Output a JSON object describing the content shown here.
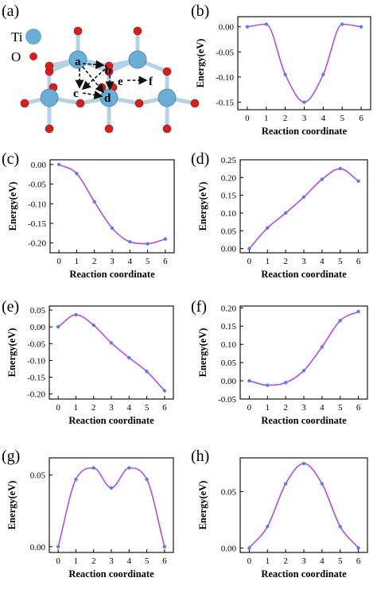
{
  "panel_letters": [
    "(a)",
    "(b)",
    "(c)",
    "(d)",
    "(e)",
    "(f)",
    "(g)",
    "(h)"
  ],
  "structure": {
    "legend": [
      {
        "symbol": "Ti",
        "color": "#6aaed6"
      },
      {
        "symbol": "O",
        "color": "#d62020"
      }
    ],
    "site_labels": [
      "a",
      "b",
      "c",
      "d",
      "e",
      "f"
    ],
    "colors": {
      "ti": "#6aaed6",
      "o": "#d62020",
      "bond": "#b4d2e3",
      "arrow": "#111111"
    }
  },
  "style": {
    "line_color": "#b04fd6",
    "marker_color": "#5b7fe0"
  },
  "chart_data": [
    {
      "panel": "(b)",
      "type": "line",
      "xlabel": "Reaction coordinate",
      "ylabel": "Energy(eV)",
      "x": [
        0,
        1,
        2,
        3,
        4,
        5,
        6
      ],
      "values": [
        0.0,
        0.005,
        -0.095,
        -0.15,
        -0.095,
        0.005,
        0.0
      ],
      "xlim": [
        -0.5,
        6.5
      ],
      "ylim": [
        -0.165,
        0.02
      ],
      "xticks": [
        "0",
        "1",
        "2",
        "3",
        "4",
        "5",
        "6"
      ],
      "yticks": [
        "0.00",
        "-0.05",
        "-0.10",
        "-0.15"
      ]
    },
    {
      "panel": "(c)",
      "type": "line",
      "xlabel": "Reaction coordinate",
      "ylabel": "Energy(eV)",
      "x": [
        0,
        1,
        2,
        3,
        4,
        5,
        6
      ],
      "values": [
        0.0,
        -0.023,
        -0.095,
        -0.162,
        -0.197,
        -0.202,
        -0.19
      ],
      "xlim": [
        -0.5,
        6.5
      ],
      "ylim": [
        -0.225,
        0.012
      ],
      "xticks": [
        "0",
        "1",
        "2",
        "3",
        "4",
        "5",
        "6"
      ],
      "yticks": [
        "0.00",
        "-0.05",
        "-0.10",
        "-0.15",
        "-0.20"
      ]
    },
    {
      "panel": "(d)",
      "type": "line",
      "xlabel": "Reaction coordinate",
      "ylabel": "Energy(eV)",
      "x": [
        0,
        1,
        2,
        3,
        4,
        5,
        6
      ],
      "values": [
        0.0,
        0.058,
        0.1,
        0.145,
        0.195,
        0.225,
        0.19
      ],
      "xlim": [
        -0.5,
        6.5
      ],
      "ylim": [
        -0.012,
        0.25
      ],
      "xticks": [
        "0",
        "1",
        "2",
        "3",
        "4",
        "5",
        "6"
      ],
      "yticks": [
        "0.00",
        "0.05",
        "0.10",
        "0.15",
        "0.20",
        "0.25"
      ]
    },
    {
      "panel": "(e)",
      "type": "line",
      "xlabel": "Reaction coordinate",
      "ylabel": "Energy(eV)",
      "x": [
        0,
        1,
        2,
        3,
        4,
        5,
        6
      ],
      "values": [
        0.0,
        0.036,
        0.005,
        -0.048,
        -0.092,
        -0.133,
        -0.19
      ],
      "xlim": [
        -0.5,
        6.5
      ],
      "ylim": [
        -0.215,
        0.062
      ],
      "xticks": [
        "0",
        "1",
        "2",
        "3",
        "4",
        "5",
        "6"
      ],
      "yticks": [
        "0.05",
        "0.00",
        "-0.05",
        "-0.10",
        "-0.15",
        "-0.20"
      ]
    },
    {
      "panel": "(f)",
      "type": "line",
      "xlabel": "Reaction coordinate",
      "ylabel": "Energy(eV)",
      "x": [
        0,
        1,
        2,
        3,
        4,
        5,
        6
      ],
      "values": [
        0.0,
        -0.012,
        -0.005,
        0.028,
        0.093,
        0.165,
        0.19
      ],
      "xlim": [
        -0.5,
        6.5
      ],
      "ylim": [
        -0.05,
        0.205
      ],
      "xticks": [
        "0",
        "1",
        "2",
        "3",
        "4",
        "5",
        "6"
      ],
      "yticks": [
        "0.20",
        "0.15",
        "0.10",
        "0.05",
        "0.00",
        "-0.05"
      ]
    },
    {
      "panel": "(g)",
      "type": "line",
      "xlabel": "Reaction coordinate",
      "ylabel": "Energy(eV)",
      "x": [
        0,
        1,
        2,
        3,
        4,
        5,
        6
      ],
      "values": [
        0.0,
        0.047,
        0.055,
        0.041,
        0.055,
        0.047,
        0.0
      ],
      "xlim": [
        -0.5,
        6.5
      ],
      "ylim": [
        -0.004,
        0.062
      ],
      "xticks": [
        "0",
        "1",
        "2",
        "3",
        "4",
        "5",
        "6"
      ],
      "yticks": [
        "0.05",
        "0.00"
      ]
    },
    {
      "panel": "(h)",
      "type": "line",
      "xlabel": "Reaction coordinate",
      "ylabel": "Energy(eV)",
      "x": [
        0,
        1,
        2,
        3,
        4,
        5,
        6
      ],
      "values": [
        0.0,
        0.019,
        0.057,
        0.075,
        0.057,
        0.019,
        0.0
      ],
      "xlim": [
        -0.5,
        6.5
      ],
      "ylim": [
        -0.004,
        0.08
      ],
      "xticks": [
        "0",
        "1",
        "2",
        "3",
        "4",
        "5",
        "6"
      ],
      "yticks": [
        "0.05",
        "0.00"
      ]
    }
  ]
}
